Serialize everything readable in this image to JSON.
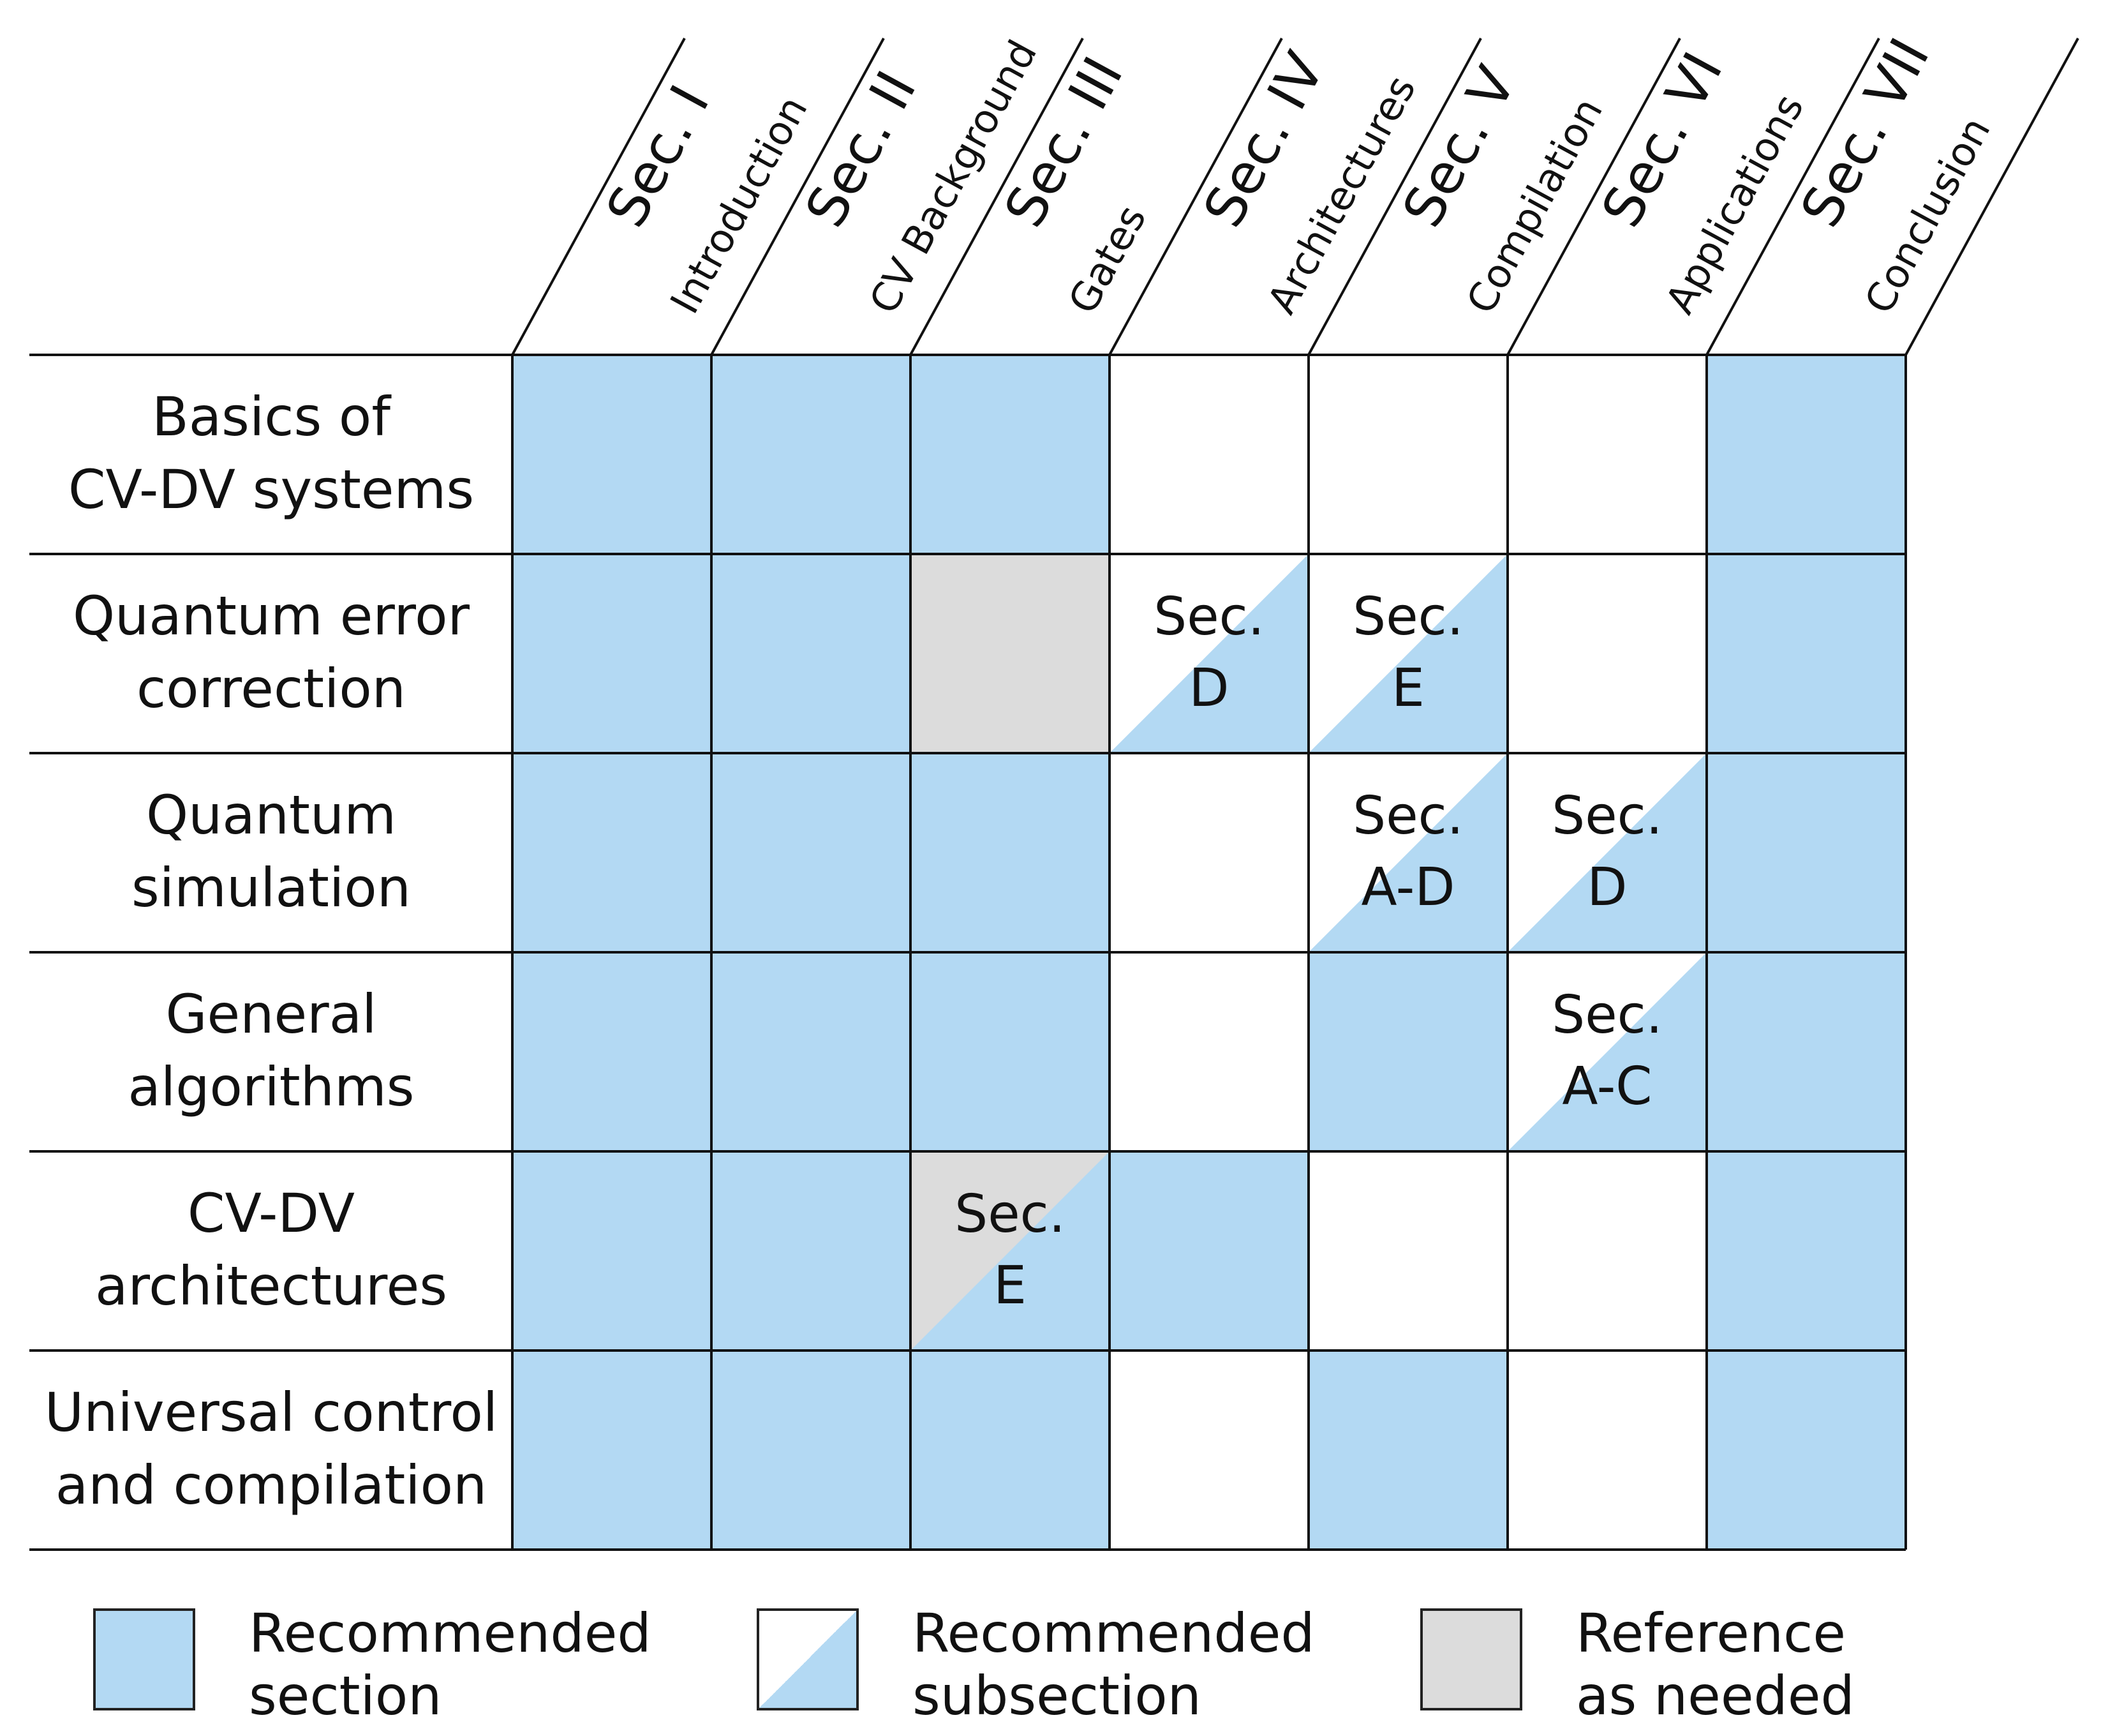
{
  "colors": {
    "recommended": "#b3d9f3",
    "reference": "#dcdcdc",
    "empty": "#ffffff",
    "line": "#111111"
  },
  "columns": [
    {
      "sec": "Sec. I",
      "title": "Introduction"
    },
    {
      "sec": "Sec. II",
      "title": "CV Background"
    },
    {
      "sec": "Sec. III",
      "title": "Gates"
    },
    {
      "sec": "Sec. IV",
      "title": "Architectures"
    },
    {
      "sec": "Sec. V",
      "title": "Compilation"
    },
    {
      "sec": "Sec. VI",
      "title": "Applications"
    },
    {
      "sec": "Sec. VII",
      "title": "Conclusion"
    }
  ],
  "rows": [
    {
      "label": [
        "Basics of",
        "CV-DV systems"
      ],
      "cells": [
        {
          "kind": "recommended"
        },
        {
          "kind": "recommended"
        },
        {
          "kind": "recommended"
        },
        {
          "kind": "none"
        },
        {
          "kind": "none"
        },
        {
          "kind": "none"
        },
        {
          "kind": "recommended"
        }
      ]
    },
    {
      "label": [
        "Quantum error",
        "correction"
      ],
      "cells": [
        {
          "kind": "recommended"
        },
        {
          "kind": "recommended"
        },
        {
          "kind": "reference"
        },
        {
          "kind": "subsection",
          "base": "none",
          "text": [
            "Sec.",
            "D"
          ]
        },
        {
          "kind": "subsection",
          "base": "none",
          "text": [
            "Sec.",
            "E"
          ]
        },
        {
          "kind": "none"
        },
        {
          "kind": "recommended"
        }
      ]
    },
    {
      "label": [
        "Quantum",
        "simulation"
      ],
      "cells": [
        {
          "kind": "recommended"
        },
        {
          "kind": "recommended"
        },
        {
          "kind": "recommended"
        },
        {
          "kind": "none"
        },
        {
          "kind": "subsection",
          "base": "none",
          "text": [
            "Sec.",
            "A-D"
          ]
        },
        {
          "kind": "subsection",
          "base": "none",
          "text": [
            "Sec.",
            "D"
          ]
        },
        {
          "kind": "recommended"
        }
      ]
    },
    {
      "label": [
        "General",
        "algorithms"
      ],
      "cells": [
        {
          "kind": "recommended"
        },
        {
          "kind": "recommended"
        },
        {
          "kind": "recommended"
        },
        {
          "kind": "none"
        },
        {
          "kind": "recommended"
        },
        {
          "kind": "subsection",
          "base": "none",
          "text": [
            "Sec.",
            "A-C"
          ]
        },
        {
          "kind": "recommended"
        }
      ]
    },
    {
      "label": [
        "CV-DV",
        "architectures"
      ],
      "cells": [
        {
          "kind": "recommended"
        },
        {
          "kind": "recommended"
        },
        {
          "kind": "subsection",
          "base": "reference",
          "text": [
            "Sec.",
            "E"
          ]
        },
        {
          "kind": "recommended"
        },
        {
          "kind": "none"
        },
        {
          "kind": "none"
        },
        {
          "kind": "recommended"
        }
      ]
    },
    {
      "label": [
        "Universal control",
        "and compilation"
      ],
      "cells": [
        {
          "kind": "recommended"
        },
        {
          "kind": "recommended"
        },
        {
          "kind": "recommended"
        },
        {
          "kind": "none"
        },
        {
          "kind": "recommended"
        },
        {
          "kind": "none"
        },
        {
          "kind": "recommended"
        }
      ]
    }
  ],
  "legend": [
    {
      "kind": "recommended",
      "label": [
        "Recommended",
        "section"
      ]
    },
    {
      "kind": "subsection",
      "label": [
        "Recommended",
        "subsection"
      ]
    },
    {
      "kind": "reference",
      "label": [
        "Reference",
        "as needed"
      ]
    }
  ]
}
